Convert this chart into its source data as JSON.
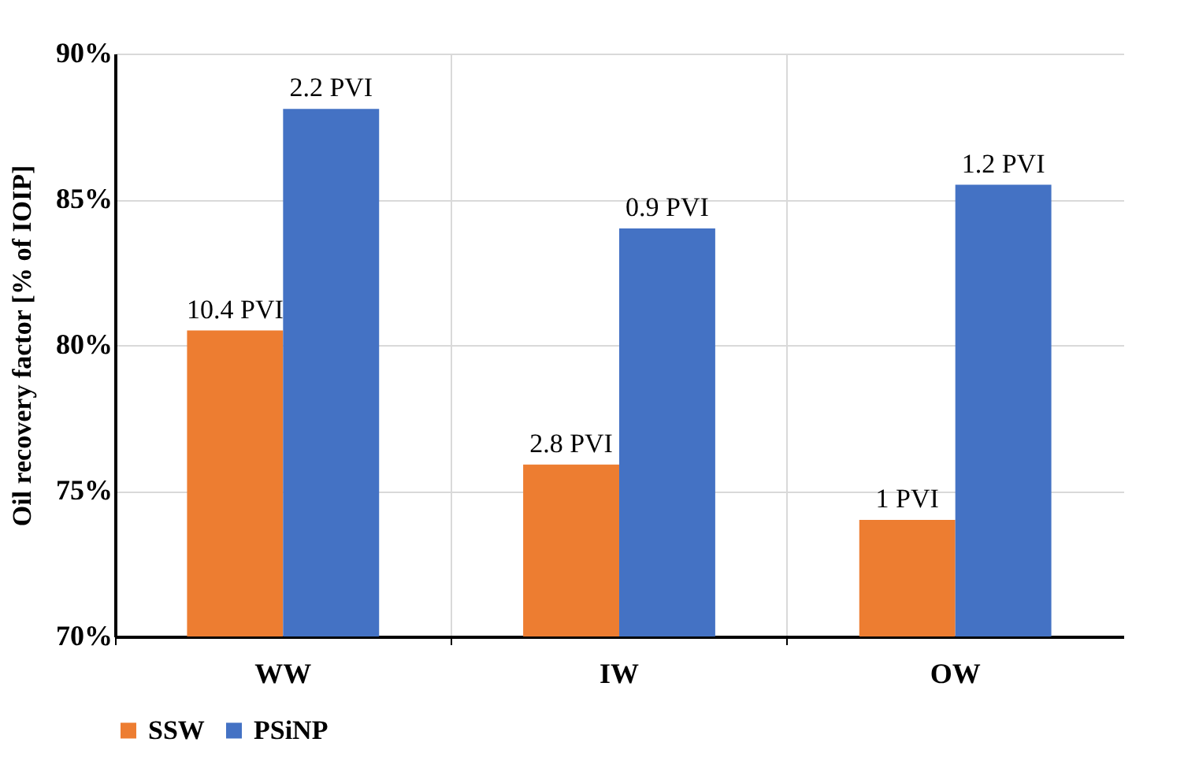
{
  "chart_data": {
    "type": "bar",
    "ylabel": "Oil recovery factor [% of IOIP]",
    "categories": [
      "WW",
      "IW",
      "OW"
    ],
    "series": [
      {
        "name": "SSW",
        "color": "#ed7d31",
        "values": [
          80.5,
          75.9,
          74.0
        ]
      },
      {
        "name": "PSiNP",
        "color": "#4472c4",
        "values": [
          88.1,
          84.0,
          85.5
        ]
      }
    ],
    "annotations": [
      {
        "text": "10.4 PVI",
        "x": "WW",
        "y": 80.5
      },
      {
        "text": "2.8 PVI",
        "x": "IW",
        "y": 75.9
      },
      {
        "text": "1 PVI",
        "x": "OW",
        "y": 74.0
      },
      {
        "text": "2.2 PVI",
        "x": "WW",
        "y": 88.1
      },
      {
        "text": "0.9 PVI",
        "x": "IW",
        "y": 84.0
      },
      {
        "text": "1.2 PVI",
        "x": "OW",
        "y": 85.5
      }
    ],
    "ylim": [
      70,
      90
    ],
    "yticks": [
      {
        "value": 70,
        "label": "70%"
      },
      {
        "value": 75,
        "label": "75%"
      },
      {
        "value": 80,
        "label": "80%"
      },
      {
        "value": 85,
        "label": "85%"
      },
      {
        "value": 90,
        "label": "90%"
      }
    ],
    "grid": true,
    "legend": "bottom"
  }
}
